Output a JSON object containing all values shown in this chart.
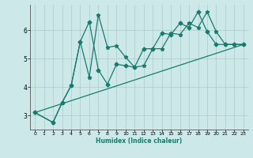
{
  "xlabel": "Humidex (Indice chaleur)",
  "background_color": "#cce8e8",
  "grid_color": "#aacccc",
  "line_color": "#1a7a6e",
  "xlim": [
    -0.5,
    23.5
  ],
  "ylim": [
    2.5,
    6.9
  ],
  "x_ticks": [
    0,
    1,
    2,
    3,
    4,
    5,
    6,
    7,
    8,
    9,
    10,
    11,
    12,
    13,
    14,
    15,
    16,
    17,
    18,
    19,
    20,
    21,
    22,
    23
  ],
  "y_ticks": [
    3,
    4,
    5,
    6
  ],
  "series1_x": [
    0,
    2,
    3,
    4,
    5,
    6,
    7,
    8,
    9,
    10,
    11,
    12,
    13,
    14,
    15,
    16,
    17,
    18,
    19,
    20,
    21,
    22,
    23
  ],
  "series1_y": [
    3.1,
    2.75,
    3.45,
    4.05,
    5.6,
    4.35,
    6.55,
    5.4,
    5.45,
    5.05,
    4.7,
    4.75,
    5.35,
    5.35,
    5.9,
    5.85,
    6.25,
    6.1,
    6.65,
    5.95,
    5.5,
    5.5,
    5.5
  ],
  "series2_x": [
    0,
    2,
    3,
    4,
    5,
    6,
    7,
    8,
    9,
    10,
    11,
    12,
    13,
    14,
    15,
    16,
    17,
    18,
    19,
    20,
    21,
    22,
    23
  ],
  "series2_y": [
    3.1,
    2.75,
    3.45,
    4.05,
    5.6,
    6.3,
    4.6,
    4.1,
    4.8,
    4.75,
    4.7,
    5.35,
    5.35,
    5.9,
    5.85,
    6.25,
    6.1,
    6.65,
    5.95,
    5.5,
    5.5,
    5.5,
    5.5
  ],
  "series3_x": [
    0,
    23
  ],
  "series3_y": [
    3.1,
    5.5
  ],
  "marker_size": 2.5,
  "line_width": 0.9
}
